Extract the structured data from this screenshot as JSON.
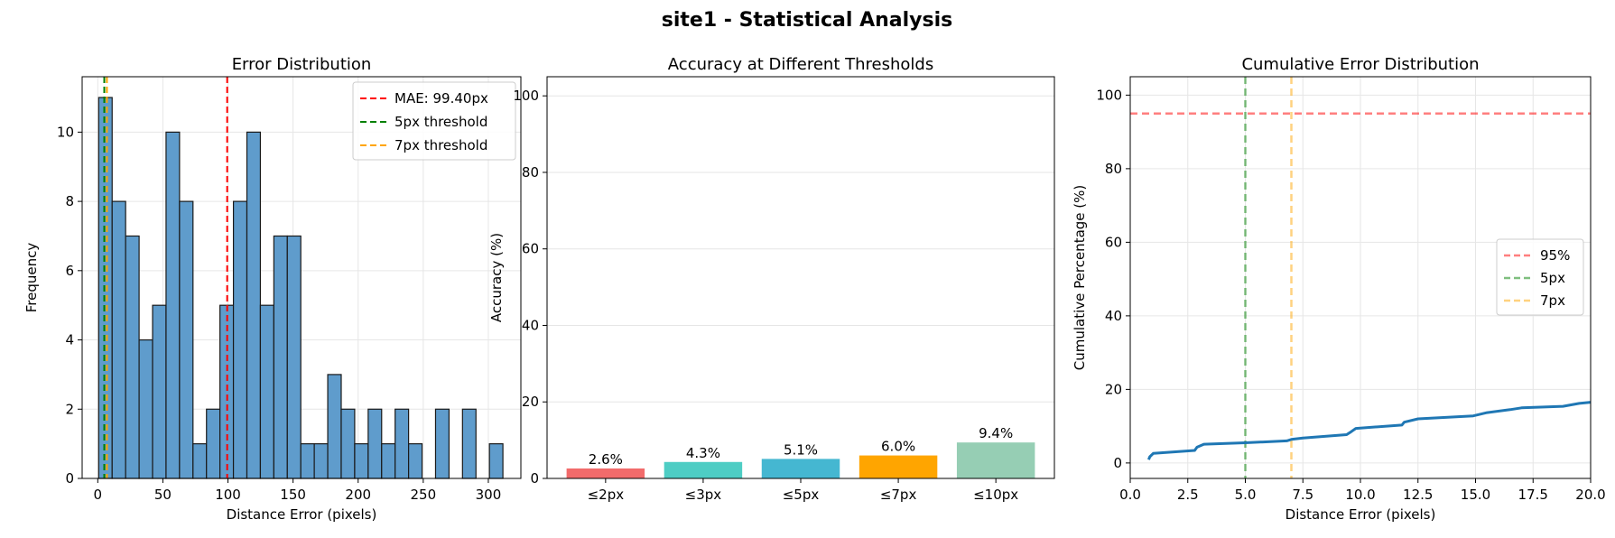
{
  "figure": {
    "title": "site1 - Statistical Analysis"
  },
  "chart_data": [
    {
      "type": "bar",
      "subtype": "histogram",
      "title": "Error Distribution",
      "xlabel": "Distance Error (pixels)",
      "ylabel": "Frequency",
      "xlim": [
        -12,
        325
      ],
      "ylim": [
        0,
        11.6
      ],
      "xticks": [
        0,
        50,
        100,
        150,
        200,
        250,
        300
      ],
      "yticks": [
        0,
        2,
        4,
        6,
        8,
        10
      ],
      "grid": true,
      "legend_position": "top-right",
      "bar_color": "#5f9ccc",
      "bin_start": 0.7,
      "bin_width": 10.35,
      "counts": [
        11,
        8,
        7,
        4,
        5,
        10,
        8,
        1,
        2,
        5,
        8,
        10,
        5,
        7,
        7,
        1,
        1,
        3,
        2,
        1,
        2,
        1,
        2,
        1,
        0,
        2,
        0,
        2,
        0,
        1
      ],
      "reference_lines": [
        {
          "label": "MAE: 99.40px",
          "x": 99.4,
          "color": "#ff0000"
        },
        {
          "label": "5px threshold",
          "x": 5,
          "color": "#008000"
        },
        {
          "label": "7px threshold",
          "x": 7,
          "color": "#ffa500"
        }
      ]
    },
    {
      "type": "bar",
      "title": "Accuracy at Different Thresholds",
      "xlabel": "",
      "ylabel": "Accuracy (%)",
      "ylim": [
        0,
        105
      ],
      "yticks": [
        0,
        20,
        40,
        60,
        80,
        100
      ],
      "grid": true,
      "categories": [
        "≤2px",
        "≤3px",
        "≤5px",
        "≤7px",
        "≤10px"
      ],
      "values": [
        2.6,
        4.3,
        5.1,
        6.0,
        9.4
      ],
      "data_labels": [
        "2.6%",
        "4.3%",
        "5.1%",
        "6.0%",
        "9.4%"
      ],
      "colors": [
        "#f26b6b",
        "#4ecdc4",
        "#45b7d1",
        "#ffa500",
        "#96ceb4"
      ]
    },
    {
      "type": "line",
      "title": "Cumulative Error Distribution",
      "xlabel": "Distance Error (pixels)",
      "ylabel": "Cumulative Percentage (%)",
      "xlim": [
        0,
        20
      ],
      "ylim": [
        -4.2,
        105
      ],
      "xticks": [
        "0.0",
        "2.5",
        "5.0",
        "7.5",
        "10.0",
        "12.5",
        "15.0",
        "17.5",
        "20.0"
      ],
      "yticks": [
        0,
        20,
        40,
        60,
        80,
        100
      ],
      "grid": true,
      "legend_position": "center-right",
      "series_color": "#1f77b4",
      "x": [
        0.8,
        0.85,
        1.0,
        2.8,
        2.9,
        3.2,
        5.0,
        6.8,
        7.0,
        7.5,
        9.4,
        9.6,
        9.8,
        11.8,
        11.9,
        12.5,
        14.9,
        15.5,
        16.5,
        17.0,
        18.8,
        19.5,
        20.0
      ],
      "y": [
        0.9,
        1.7,
        2.6,
        3.4,
        4.3,
        5.1,
        5.5,
        6.0,
        6.4,
        6.8,
        7.7,
        8.5,
        9.4,
        10.3,
        11.1,
        12.0,
        12.8,
        13.7,
        14.5,
        15.0,
        15.4,
        16.2,
        16.5
      ],
      "reference_lines": [
        {
          "label": "95%",
          "orientation": "horizontal",
          "value": 95,
          "color": "#ff0000"
        },
        {
          "label": "5px",
          "orientation": "vertical",
          "value": 5,
          "color": "#008000"
        },
        {
          "label": "7px",
          "orientation": "vertical",
          "value": 7,
          "color": "#ffa500"
        }
      ]
    }
  ]
}
